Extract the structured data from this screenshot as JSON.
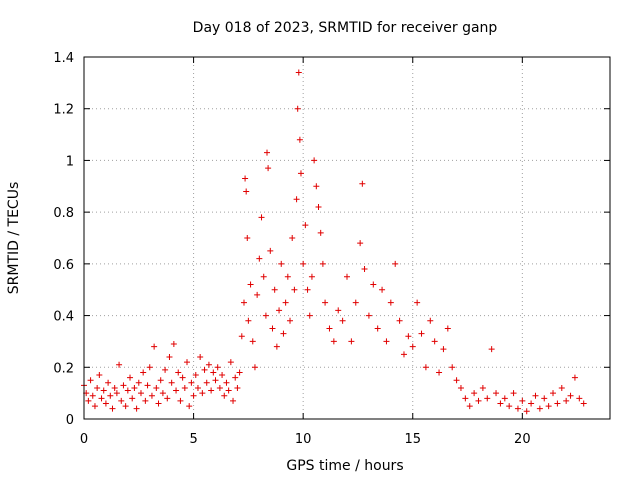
{
  "chart_data": {
    "type": "scatter",
    "title": "Day 018 of 2023, SRMTID for receiver ganp",
    "xlabel": "GPS time / hours",
    "ylabel": "SRMTID / TECUs",
    "xlim": [
      0,
      24
    ],
    "ylim": [
      0,
      1.4
    ],
    "xticks": [
      0,
      5,
      10,
      15,
      20
    ],
    "xtick_labels": [
      "0",
      "5",
      "10",
      "15",
      "20"
    ],
    "yticks": [
      0,
      0.2,
      0.4,
      0.6,
      0.8,
      1.0,
      1.2,
      1.4
    ],
    "ytick_labels": [
      "0",
      "0.2",
      "0.4",
      "0.6",
      "0.8",
      "1",
      "1.2",
      "1.4"
    ],
    "grid": true,
    "marker": "+",
    "color": "#e00000",
    "series": [
      {
        "name": "SRMTID",
        "points": [
          [
            0.0,
            0.13
          ],
          [
            0.1,
            0.1
          ],
          [
            0.2,
            0.07
          ],
          [
            0.3,
            0.15
          ],
          [
            0.4,
            0.09
          ],
          [
            0.5,
            0.05
          ],
          [
            0.6,
            0.12
          ],
          [
            0.7,
            0.17
          ],
          [
            0.8,
            0.08
          ],
          [
            0.9,
            0.11
          ],
          [
            1.0,
            0.06
          ],
          [
            1.1,
            0.14
          ],
          [
            1.2,
            0.09
          ],
          [
            1.3,
            0.04
          ],
          [
            1.4,
            0.12
          ],
          [
            1.5,
            0.1
          ],
          [
            1.6,
            0.21
          ],
          [
            1.7,
            0.07
          ],
          [
            1.8,
            0.13
          ],
          [
            1.9,
            0.05
          ],
          [
            2.0,
            0.11
          ],
          [
            2.1,
            0.16
          ],
          [
            2.2,
            0.08
          ],
          [
            2.3,
            0.12
          ],
          [
            2.4,
            0.04
          ],
          [
            2.5,
            0.14
          ],
          [
            2.6,
            0.1
          ],
          [
            2.7,
            0.18
          ],
          [
            2.8,
            0.07
          ],
          [
            2.9,
            0.13
          ],
          [
            3.0,
            0.2
          ],
          [
            3.1,
            0.09
          ],
          [
            3.2,
            0.28
          ],
          [
            3.3,
            0.12
          ],
          [
            3.4,
            0.06
          ],
          [
            3.5,
            0.15
          ],
          [
            3.6,
            0.1
          ],
          [
            3.7,
            0.19
          ],
          [
            3.8,
            0.08
          ],
          [
            3.9,
            0.24
          ],
          [
            4.0,
            0.14
          ],
          [
            4.1,
            0.29
          ],
          [
            4.2,
            0.11
          ],
          [
            4.3,
            0.18
          ],
          [
            4.4,
            0.07
          ],
          [
            4.5,
            0.16
          ],
          [
            4.6,
            0.12
          ],
          [
            4.7,
            0.22
          ],
          [
            4.8,
            0.05
          ],
          [
            4.9,
            0.14
          ],
          [
            5.0,
            0.09
          ],
          [
            5.1,
            0.17
          ],
          [
            5.2,
            0.12
          ],
          [
            5.3,
            0.24
          ],
          [
            5.4,
            0.1
          ],
          [
            5.5,
            0.19
          ],
          [
            5.6,
            0.14
          ],
          [
            5.7,
            0.21
          ],
          [
            5.8,
            0.11
          ],
          [
            5.9,
            0.18
          ],
          [
            6.0,
            0.15
          ],
          [
            6.1,
            0.2
          ],
          [
            6.2,
            0.12
          ],
          [
            6.3,
            0.17
          ],
          [
            6.4,
            0.09
          ],
          [
            6.5,
            0.14
          ],
          [
            6.6,
            0.11
          ],
          [
            6.7,
            0.22
          ],
          [
            6.8,
            0.07
          ],
          [
            6.9,
            0.16
          ],
          [
            7.0,
            0.12
          ],
          [
            7.1,
            0.18
          ],
          [
            7.2,
            0.32
          ],
          [
            7.3,
            0.45
          ],
          [
            7.35,
            0.93
          ],
          [
            7.4,
            0.88
          ],
          [
            7.45,
            0.7
          ],
          [
            7.5,
            0.38
          ],
          [
            7.6,
            0.52
          ],
          [
            7.7,
            0.3
          ],
          [
            7.8,
            0.2
          ],
          [
            7.9,
            0.48
          ],
          [
            8.0,
            0.62
          ],
          [
            8.1,
            0.78
          ],
          [
            8.2,
            0.55
          ],
          [
            8.3,
            0.4
          ],
          [
            8.35,
            1.03
          ],
          [
            8.4,
            0.97
          ],
          [
            8.5,
            0.65
          ],
          [
            8.6,
            0.35
          ],
          [
            8.7,
            0.5
          ],
          [
            8.8,
            0.28
          ],
          [
            8.9,
            0.42
          ],
          [
            9.0,
            0.6
          ],
          [
            9.1,
            0.33
          ],
          [
            9.2,
            0.45
          ],
          [
            9.3,
            0.55
          ],
          [
            9.4,
            0.38
          ],
          [
            9.5,
            0.7
          ],
          [
            9.6,
            0.5
          ],
          [
            9.7,
            0.85
          ],
          [
            9.75,
            1.2
          ],
          [
            9.8,
            1.34
          ],
          [
            9.85,
            1.08
          ],
          [
            9.9,
            0.95
          ],
          [
            10.0,
            0.6
          ],
          [
            10.1,
            0.75
          ],
          [
            10.2,
            0.5
          ],
          [
            10.3,
            0.4
          ],
          [
            10.4,
            0.55
          ],
          [
            10.5,
            1.0
          ],
          [
            10.6,
            0.9
          ],
          [
            10.7,
            0.82
          ],
          [
            10.8,
            0.72
          ],
          [
            10.9,
            0.6
          ],
          [
            11.0,
            0.45
          ],
          [
            11.2,
            0.35
          ],
          [
            11.4,
            0.3
          ],
          [
            11.6,
            0.42
          ],
          [
            11.8,
            0.38
          ],
          [
            12.0,
            0.55
          ],
          [
            12.2,
            0.3
          ],
          [
            12.4,
            0.45
          ],
          [
            12.6,
            0.68
          ],
          [
            12.7,
            0.91
          ],
          [
            12.8,
            0.58
          ],
          [
            13.0,
            0.4
          ],
          [
            13.2,
            0.52
          ],
          [
            13.4,
            0.35
          ],
          [
            13.6,
            0.5
          ],
          [
            13.8,
            0.3
          ],
          [
            14.0,
            0.45
          ],
          [
            14.2,
            0.6
          ],
          [
            14.4,
            0.38
          ],
          [
            14.6,
            0.25
          ],
          [
            14.8,
            0.32
          ],
          [
            15.0,
            0.28
          ],
          [
            15.2,
            0.45
          ],
          [
            15.4,
            0.33
          ],
          [
            15.6,
            0.2
          ],
          [
            15.8,
            0.38
          ],
          [
            16.0,
            0.3
          ],
          [
            16.2,
            0.18
          ],
          [
            16.4,
            0.27
          ],
          [
            16.6,
            0.35
          ],
          [
            16.8,
            0.2
          ],
          [
            17.0,
            0.15
          ],
          [
            17.2,
            0.12
          ],
          [
            17.4,
            0.08
          ],
          [
            17.6,
            0.05
          ],
          [
            17.8,
            0.1
          ],
          [
            18.0,
            0.07
          ],
          [
            18.2,
            0.12
          ],
          [
            18.4,
            0.08
          ],
          [
            18.6,
            0.27
          ],
          [
            18.8,
            0.1
          ],
          [
            19.0,
            0.06
          ],
          [
            19.2,
            0.08
          ],
          [
            19.4,
            0.05
          ],
          [
            19.6,
            0.1
          ],
          [
            19.8,
            0.04
          ],
          [
            20.0,
            0.07
          ],
          [
            20.2,
            0.03
          ],
          [
            20.4,
            0.06
          ],
          [
            20.6,
            0.09
          ],
          [
            20.8,
            0.04
          ],
          [
            21.0,
            0.08
          ],
          [
            21.2,
            0.05
          ],
          [
            21.4,
            0.1
          ],
          [
            21.6,
            0.06
          ],
          [
            21.8,
            0.12
          ],
          [
            22.0,
            0.07
          ],
          [
            22.2,
            0.09
          ],
          [
            22.4,
            0.16
          ],
          [
            22.6,
            0.08
          ],
          [
            22.8,
            0.06
          ]
        ]
      }
    ]
  }
}
